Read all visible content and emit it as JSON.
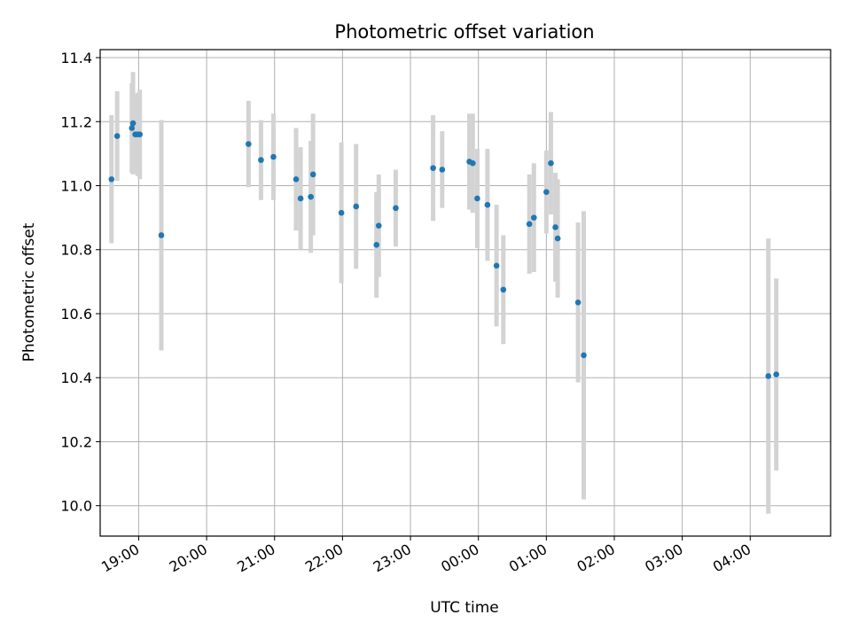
{
  "chart_data": {
    "type": "scatter",
    "title": "Photometric offset variation",
    "xlabel": "UTC time",
    "ylabel": "Photometric offset",
    "x_ticks": [
      "19:00",
      "20:00",
      "21:00",
      "22:00",
      "23:00",
      "00:00",
      "01:00",
      "02:00",
      "03:00",
      "04:00"
    ],
    "y_ticks": [
      "10.0",
      "10.2",
      "10.4",
      "10.6",
      "10.8",
      "11.0",
      "11.2",
      "11.4"
    ],
    "xlim": [
      "18:26",
      "05:11"
    ],
    "ylim": [
      9.905,
      11.425
    ],
    "grid": true,
    "marker_color": "#1f77b4",
    "errorbar_color": "#d3d3d3",
    "points": [
      {
        "t": "18:36",
        "y": 11.02,
        "err": 0.2
      },
      {
        "t": "18:41",
        "y": 11.155,
        "err": 0.14
      },
      {
        "t": "18:54",
        "y": 11.18,
        "err": 0.14
      },
      {
        "t": "18:55",
        "y": 11.195,
        "err": 0.16
      },
      {
        "t": "18:57",
        "y": 11.16,
        "err": 0.12
      },
      {
        "t": "18:59",
        "y": 11.16,
        "err": 0.13
      },
      {
        "t": "19:01",
        "y": 11.16,
        "err": 0.14
      },
      {
        "t": "19:20",
        "y": 10.845,
        "err": 0.36
      },
      {
        "t": "20:37",
        "y": 11.13,
        "err": 0.135
      },
      {
        "t": "20:48",
        "y": 11.08,
        "err": 0.125
      },
      {
        "t": "20:59",
        "y": 11.09,
        "err": 0.135
      },
      {
        "t": "21:19",
        "y": 11.02,
        "err": 0.16
      },
      {
        "t": "21:23",
        "y": 10.96,
        "err": 0.16
      },
      {
        "t": "21:32",
        "y": 10.965,
        "err": 0.175
      },
      {
        "t": "21:34",
        "y": 11.035,
        "err": 0.19
      },
      {
        "t": "21:59",
        "y": 10.915,
        "err": 0.22
      },
      {
        "t": "22:12",
        "y": 10.935,
        "err": 0.195
      },
      {
        "t": "22:30",
        "y": 10.815,
        "err": 0.165
      },
      {
        "t": "22:32",
        "y": 10.875,
        "err": 0.16
      },
      {
        "t": "22:47",
        "y": 10.93,
        "err": 0.12
      },
      {
        "t": "23:20",
        "y": 11.055,
        "err": 0.165
      },
      {
        "t": "23:28",
        "y": 11.05,
        "err": 0.12
      },
      {
        "t": "23:52",
        "y": 11.075,
        "err": 0.15
      },
      {
        "t": "23:55",
        "y": 11.07,
        "err": 0.155
      },
      {
        "t": "23:59",
        "y": 10.96,
        "err": 0.155
      },
      {
        "t": "00:08",
        "y": 10.94,
        "err": 0.175
      },
      {
        "t": "00:16",
        "y": 10.75,
        "err": 0.19
      },
      {
        "t": "00:22",
        "y": 10.675,
        "err": 0.17
      },
      {
        "t": "00:45",
        "y": 10.88,
        "err": 0.155
      },
      {
        "t": "00:49",
        "y": 10.9,
        "err": 0.17
      },
      {
        "t": "01:00",
        "y": 10.98,
        "err": 0.13
      },
      {
        "t": "01:04",
        "y": 11.07,
        "err": 0.16
      },
      {
        "t": "01:08",
        "y": 10.87,
        "err": 0.17
      },
      {
        "t": "01:10",
        "y": 10.835,
        "err": 0.185
      },
      {
        "t": "01:28",
        "y": 10.635,
        "err": 0.25
      },
      {
        "t": "01:33",
        "y": 10.47,
        "err": 0.45
      },
      {
        "t": "04:16",
        "y": 10.405,
        "err": 0.43
      },
      {
        "t": "04:23",
        "y": 10.41,
        "err": 0.3
      }
    ]
  }
}
